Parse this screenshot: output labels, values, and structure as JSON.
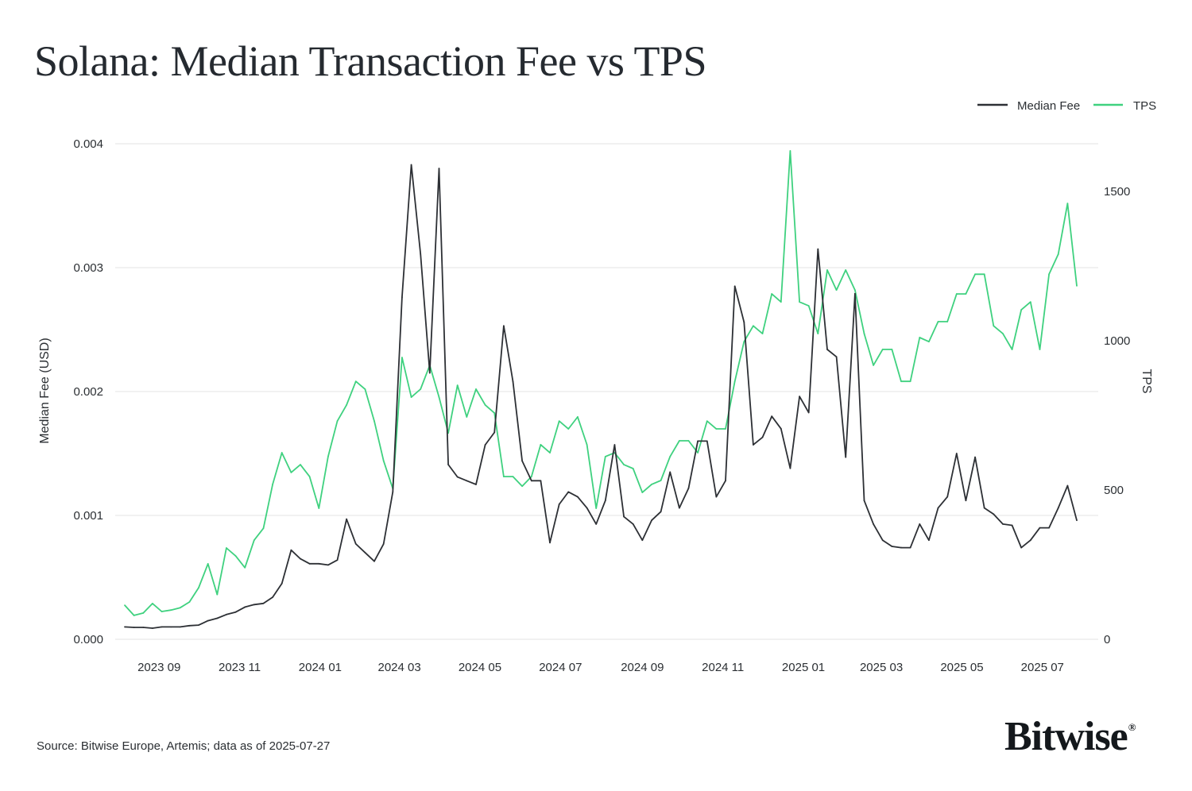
{
  "title": "Solana: Median Transaction Fee vs TPS",
  "source": "Source: Bitwise Europe, Artemis; data as of 2025-07-27",
  "logo": "Bitwise",
  "colors": {
    "median_fee": "#2d3035",
    "tps": "#3fd17f",
    "grid": "#e3e3e3"
  },
  "chart_data": {
    "type": "line",
    "title": "Solana: Median Transaction Fee vs TPS",
    "xlabel": "",
    "ylabel": "Median Fee (USD)",
    "y2label": "TPS",
    "ylim": [
      0,
      0.004
    ],
    "y2lim": [
      0,
      1660
    ],
    "xlim": [
      "2023-08-06",
      "2025-07-27"
    ],
    "grid": true,
    "legend": "top-right",
    "x_ticks": [
      "2023 09",
      "2023 11",
      "2024 01",
      "2024 03",
      "2024 05",
      "2024 07",
      "2024 09",
      "2024 11",
      "2025 01",
      "2025 03",
      "2025 05",
      "2025 07"
    ],
    "x_tick_dates": [
      "2023-09-01",
      "2023-11-01",
      "2024-01-01",
      "2024-03-01",
      "2024-05-01",
      "2024-07-01",
      "2024-09-01",
      "2024-11-01",
      "2025-01-01",
      "2025-03-01",
      "2025-05-01",
      "2025-07-01"
    ],
    "y_ticks": [
      "0.000",
      "0.001",
      "0.002",
      "0.003",
      "0.004"
    ],
    "y_tick_values": [
      0,
      0.001,
      0.002,
      0.003,
      0.004
    ],
    "y2_ticks": [
      "0",
      "500",
      "1000",
      "1500"
    ],
    "y2_tick_values": [
      0,
      500,
      1000,
      1500
    ],
    "x": [
      "2023-08-06",
      "2023-08-13",
      "2023-08-20",
      "2023-08-27",
      "2023-09-03",
      "2023-09-10",
      "2023-09-17",
      "2023-09-24",
      "2023-10-01",
      "2023-10-08",
      "2023-10-15",
      "2023-10-22",
      "2023-10-29",
      "2023-11-05",
      "2023-11-12",
      "2023-11-19",
      "2023-11-26",
      "2023-12-03",
      "2023-12-10",
      "2023-12-17",
      "2023-12-24",
      "2023-12-31",
      "2024-01-07",
      "2024-01-14",
      "2024-01-21",
      "2024-01-28",
      "2024-02-04",
      "2024-02-11",
      "2024-02-18",
      "2024-02-25",
      "2024-03-03",
      "2024-03-10",
      "2024-03-17",
      "2024-03-24",
      "2024-03-31",
      "2024-04-07",
      "2024-04-14",
      "2024-04-21",
      "2024-04-28",
      "2024-05-05",
      "2024-05-12",
      "2024-05-19",
      "2024-05-26",
      "2024-06-02",
      "2024-06-09",
      "2024-06-16",
      "2024-06-23",
      "2024-06-30",
      "2024-07-07",
      "2024-07-14",
      "2024-07-21",
      "2024-07-28",
      "2024-08-04",
      "2024-08-11",
      "2024-08-18",
      "2024-08-25",
      "2024-09-01",
      "2024-09-08",
      "2024-09-15",
      "2024-09-22",
      "2024-09-29",
      "2024-10-06",
      "2024-10-13",
      "2024-10-20",
      "2024-10-27",
      "2024-11-03",
      "2024-11-10",
      "2024-11-17",
      "2024-11-24",
      "2024-12-01",
      "2024-12-08",
      "2024-12-15",
      "2024-12-22",
      "2024-12-29",
      "2025-01-05",
      "2025-01-12",
      "2025-01-19",
      "2025-01-26",
      "2025-02-02",
      "2025-02-09",
      "2025-02-16",
      "2025-02-23",
      "2025-03-02",
      "2025-03-09",
      "2025-03-16",
      "2025-03-23",
      "2025-03-30",
      "2025-04-06",
      "2025-04-13",
      "2025-04-20",
      "2025-04-27",
      "2025-05-04",
      "2025-05-11",
      "2025-05-18",
      "2025-05-25",
      "2025-06-01",
      "2025-06-08",
      "2025-06-15",
      "2025-06-22",
      "2025-06-29",
      "2025-07-06",
      "2025-07-13",
      "2025-07-20",
      "2025-07-27"
    ],
    "series": [
      {
        "name": "Median Fee",
        "axis": "left",
        "values": [
          0.0001,
          9.6e-05,
          9.6e-05,
          9e-05,
          0.0001,
          0.0001,
          0.0001,
          0.00011,
          0.000115,
          0.00015,
          0.00017,
          0.0002,
          0.00022,
          0.00026,
          0.00028,
          0.00029,
          0.00034,
          0.00045,
          0.00072,
          0.00065,
          0.00061,
          0.00061,
          0.0006,
          0.00064,
          0.00097,
          0.00077,
          0.0007,
          0.00063,
          0.00077,
          0.00119,
          0.00276,
          0.00383,
          0.00311,
          0.00215,
          0.0038,
          0.00141,
          0.00131,
          0.00128,
          0.00125,
          0.00157,
          0.00167,
          0.00253,
          0.00208,
          0.00144,
          0.00128,
          0.00128,
          0.00078,
          0.00109,
          0.00119,
          0.00115,
          0.00106,
          0.00093,
          0.00112,
          0.00157,
          0.00099,
          0.00093,
          0.0008,
          0.00096,
          0.00103,
          0.00135,
          0.00106,
          0.00122,
          0.0016,
          0.0016,
          0.00115,
          0.00128,
          0.00285,
          0.00256,
          0.00157,
          0.00163,
          0.0018,
          0.0017,
          0.00138,
          0.00196,
          0.00183,
          0.00315,
          0.00234,
          0.00228,
          0.00147,
          0.00279,
          0.00112,
          0.00093,
          0.0008,
          0.00075,
          0.00074,
          0.00074,
          0.00093,
          0.0008,
          0.00106,
          0.00115,
          0.0015,
          0.00112,
          0.00147,
          0.00106,
          0.00101,
          0.00093,
          0.00092,
          0.00074,
          0.0008,
          0.0009,
          0.0009,
          0.00106,
          0.00124,
          0.00096
        ]
      },
      {
        "name": "TPS",
        "axis": "right",
        "values": [
          114,
          80,
          88,
          120,
          93,
          98,
          106,
          125,
          173,
          253,
          150,
          306,
          279,
          240,
          332,
          372,
          519,
          625,
          559,
          585,
          545,
          439,
          612,
          731,
          785,
          864,
          838,
          731,
          598,
          505,
          944,
          811,
          838,
          918,
          811,
          691,
          851,
          745,
          838,
          785,
          758,
          545,
          545,
          513,
          545,
          652,
          625,
          731,
          705,
          745,
          652,
          439,
          612,
          625,
          585,
          572,
          492,
          519,
          532,
          612,
          665,
          665,
          625,
          731,
          705,
          705,
          864,
          997,
          1050,
          1024,
          1157,
          1130,
          1636,
          1130,
          1117,
          1024,
          1237,
          1170,
          1237,
          1170,
          1024,
          918,
          971,
          971,
          864,
          864,
          1011,
          997,
          1064,
          1064,
          1157,
          1157,
          1223,
          1223,
          1050,
          1024,
          971,
          1104,
          1130,
          971,
          1223,
          1290,
          1460,
          1184
        ]
      }
    ]
  }
}
